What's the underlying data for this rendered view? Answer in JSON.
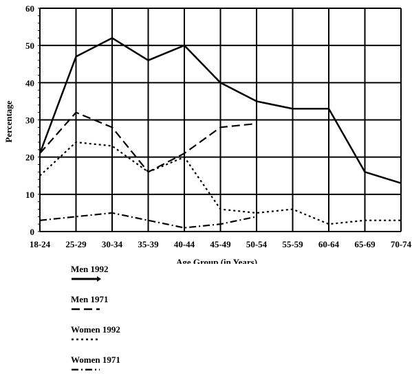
{
  "chart_data": {
    "type": "line",
    "title": "",
    "xlabel": "Age Group (in Years)",
    "ylabel": "Percentage",
    "ylim": [
      0,
      60
    ],
    "yticks": [
      0,
      10,
      20,
      30,
      40,
      50,
      60
    ],
    "grid": true,
    "legend_position": "bottom-left",
    "categories": [
      "18-24",
      "25-29",
      "30-34",
      "35-39",
      "40-44",
      "45-49",
      "50-54",
      "55-59",
      "60-64",
      "65-69",
      "70-74"
    ],
    "series": [
      {
        "name": "Men 1992",
        "style": "solid",
        "color": "#000000",
        "values": [
          21,
          47,
          52,
          46,
          50,
          40,
          35,
          33,
          33,
          16,
          13
        ]
      },
      {
        "name": "Men 1971",
        "style": "dashed",
        "color": "#000000",
        "values": [
          21,
          32,
          28,
          16,
          21,
          28,
          29,
          null,
          null,
          null,
          null
        ]
      },
      {
        "name": "Women 1992",
        "style": "dotted",
        "color": "#000000",
        "values": [
          15,
          24,
          23,
          16,
          20,
          6,
          5,
          6,
          2,
          3,
          3
        ]
      },
      {
        "name": "Women 1971",
        "style": "dashdot",
        "color": "#000000",
        "values": [
          3,
          4,
          5,
          3,
          1,
          2,
          4,
          null,
          null,
          null,
          null
        ]
      }
    ]
  }
}
